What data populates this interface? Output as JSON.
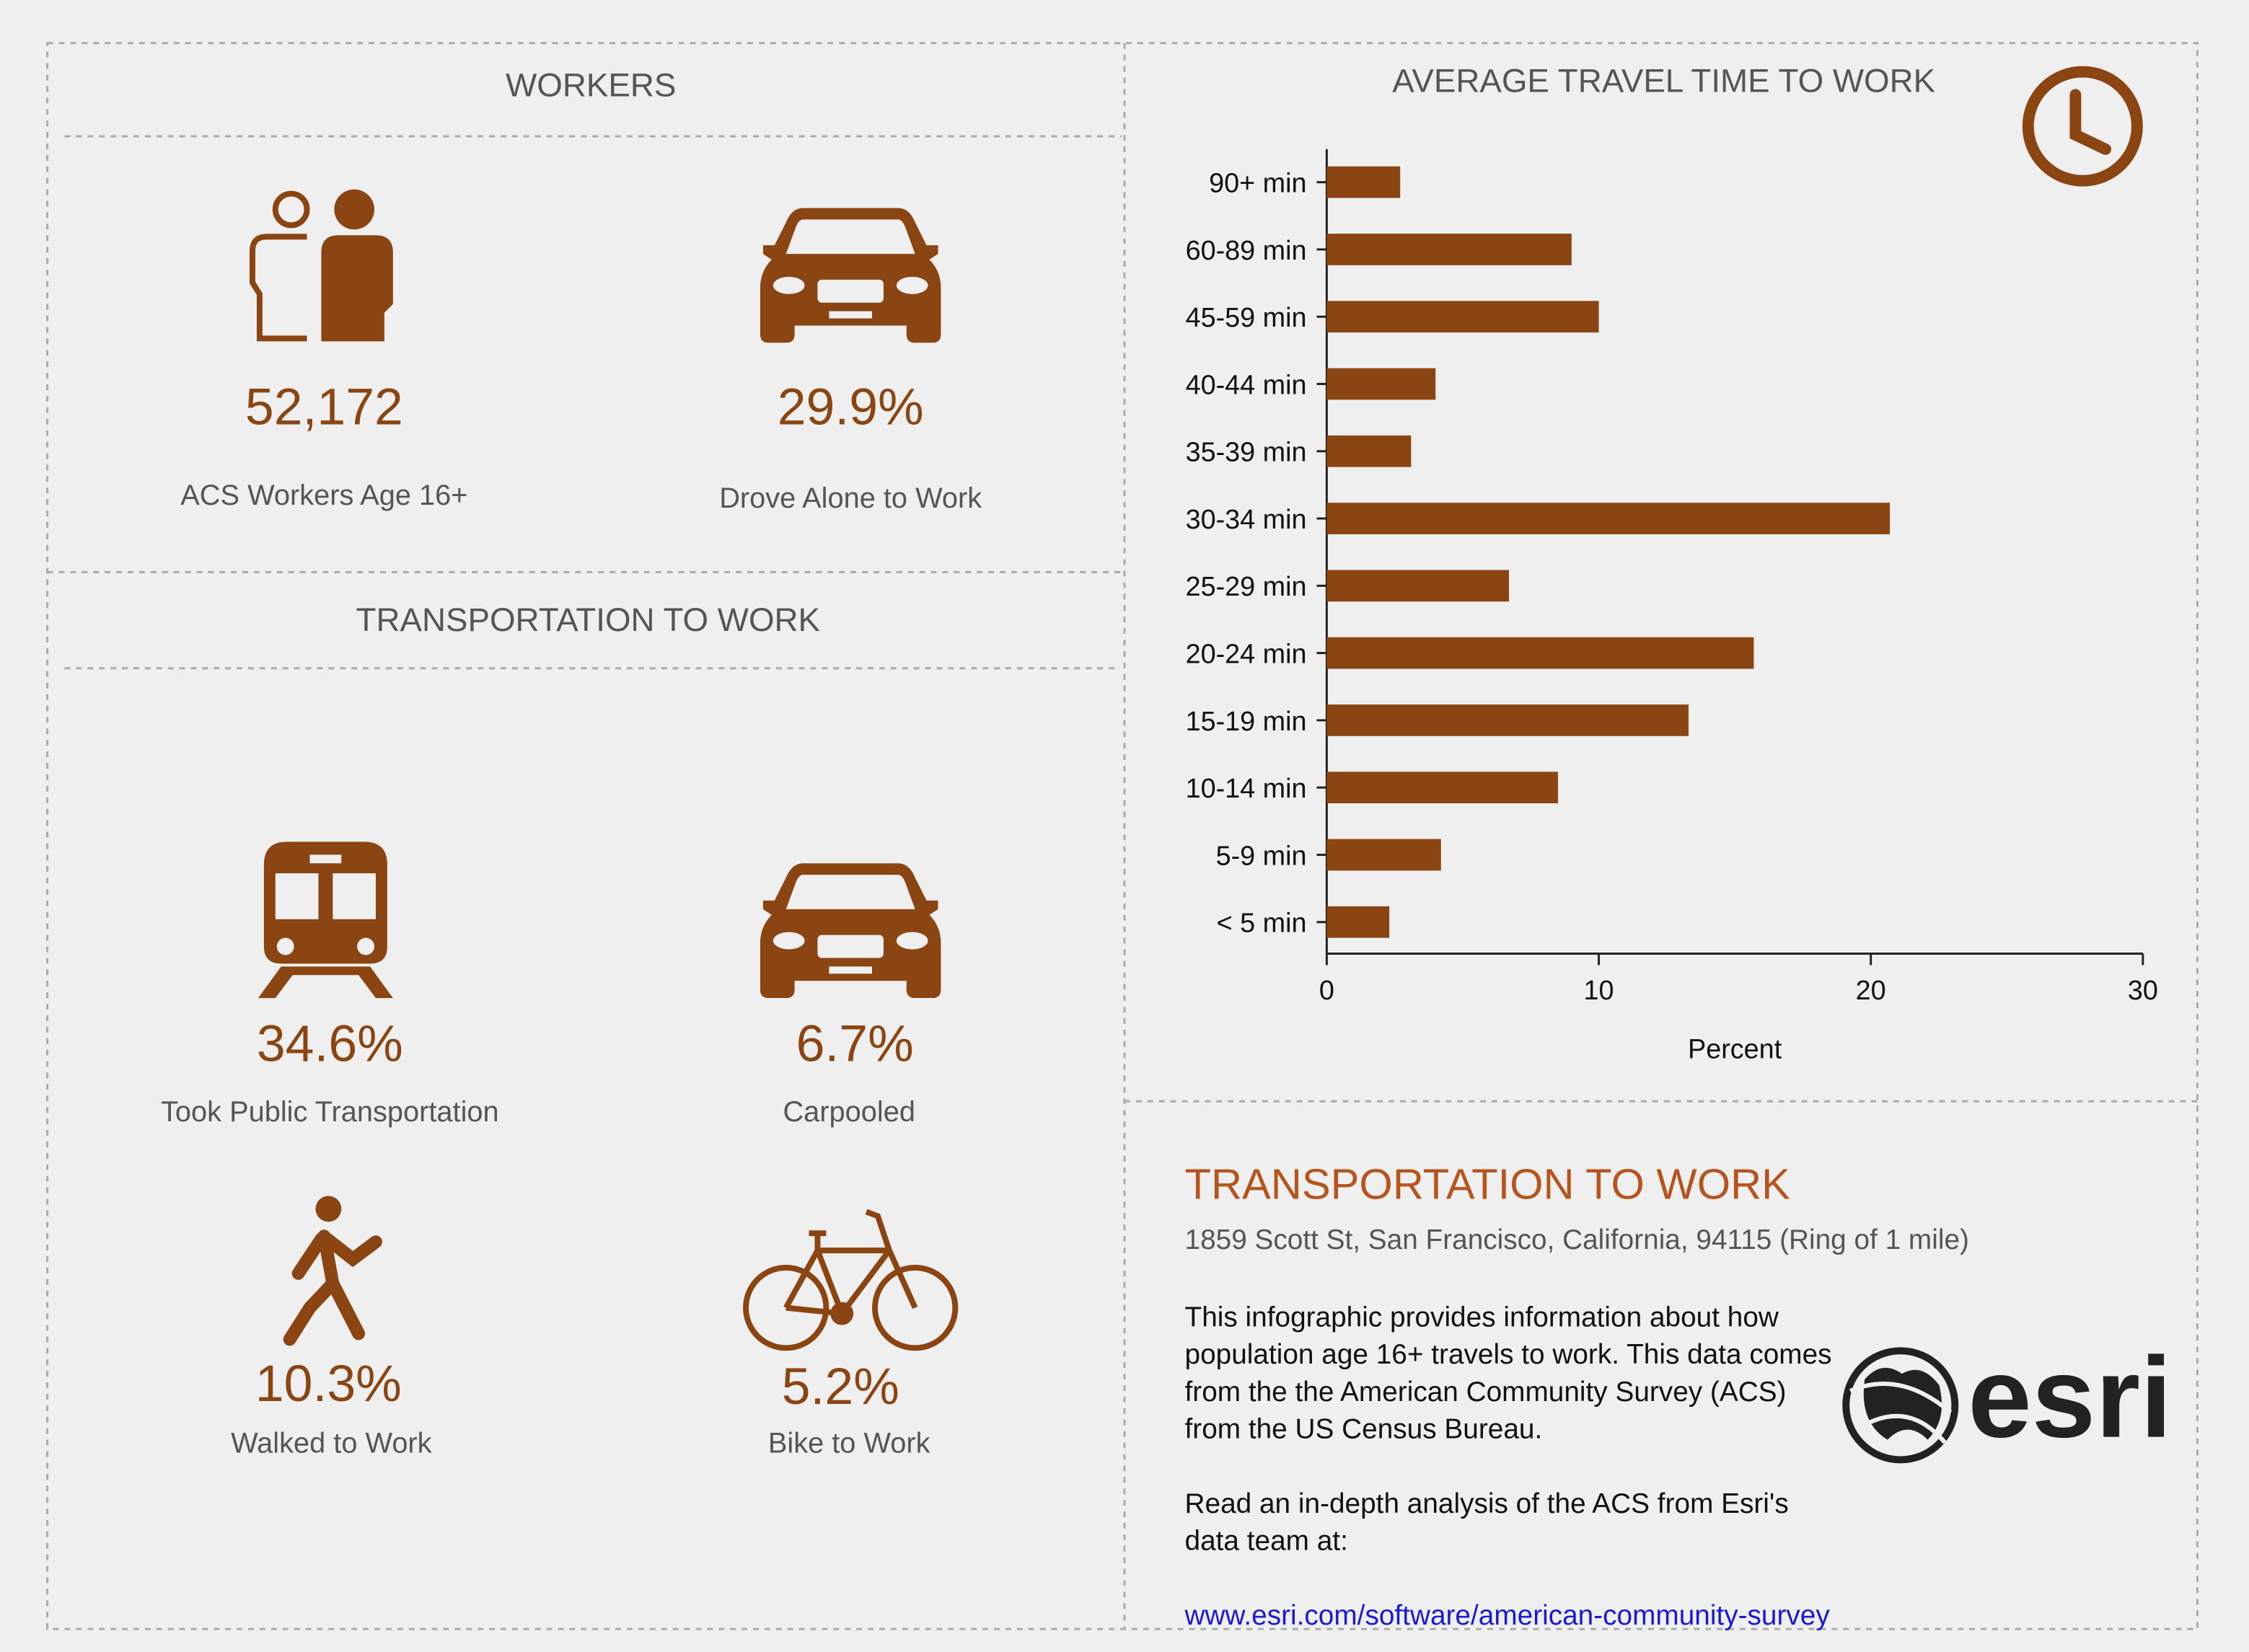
{
  "workers": {
    "title": "WORKERS",
    "stats": [
      {
        "value": "52,172",
        "label": "ACS Workers Age 16+"
      },
      {
        "value": "29.9%",
        "label": "Drove Alone to Work"
      }
    ]
  },
  "transportation": {
    "title": "TRANSPORTATION TO WORK",
    "stats": [
      {
        "value": "34.6%",
        "label": "Took Public Transportation"
      },
      {
        "value": "6.7%",
        "label": "Carpooled"
      },
      {
        "value": "10.3%",
        "label": "Walked to Work"
      },
      {
        "value": "5.2%",
        "label": "Bike to Work"
      }
    ]
  },
  "chart_data": {
    "type": "bar",
    "orientation": "horizontal",
    "title": "AVERAGE TRAVEL TIME TO WORK",
    "categories": [
      "< 5 min",
      "5-9 min",
      "10-14 min",
      "15-19 min",
      "20-24 min",
      "25-29 min",
      "30-34 min",
      "35-39 min",
      "40-44 min",
      "45-59 min",
      "60-89 min",
      "90+ min"
    ],
    "values": [
      2.3,
      4.2,
      8.5,
      13.3,
      15.7,
      6.7,
      20.7,
      3.1,
      4.0,
      10.0,
      9.0,
      2.7
    ],
    "color": "#8b4513",
    "xlabel": "Percent",
    "xlim": [
      0,
      30
    ],
    "xticks": [
      0,
      10,
      20,
      30
    ]
  },
  "info": {
    "title": "TRANSPORTATION TO WORK",
    "location": "1859 Scott St, San Francisco, California, 94115 (Ring of 1 mile)",
    "paragraphs": [
      "This infographic provides information about how population age 16+ travels to work. This data comes from the the American Community Survey (ACS) from the US Census Bureau.",
      "Read an in-depth analysis of the ACS from Esri's data team at:"
    ],
    "link": "www.esri.com/software/american-community-survey",
    "logo": "esri"
  }
}
